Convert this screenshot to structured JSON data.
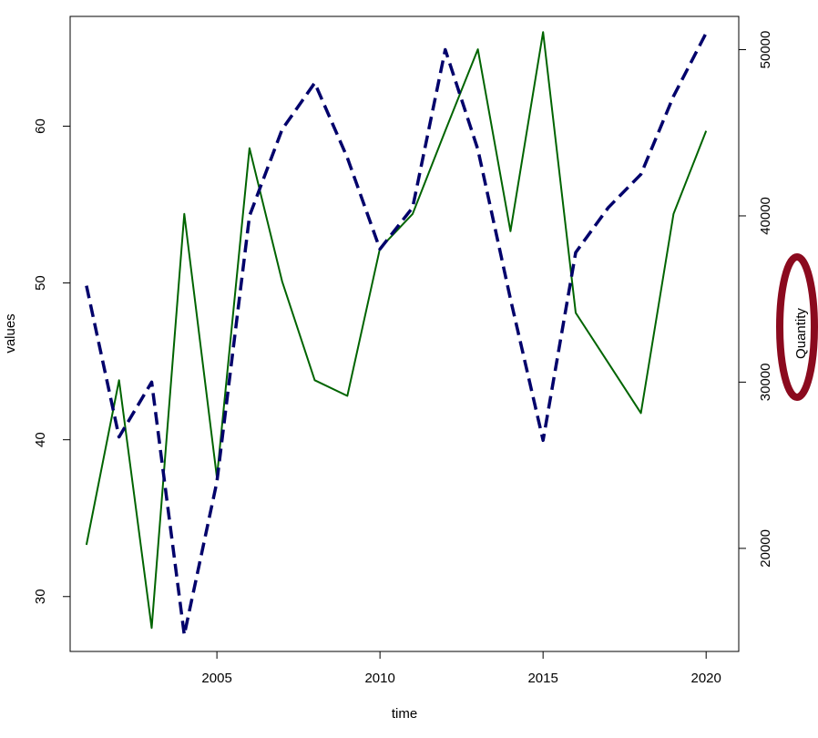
{
  "chart_data": {
    "type": "line",
    "x": [
      2001,
      2002,
      2003,
      2004,
      2005,
      2006,
      2007,
      2008,
      2009,
      2010,
      2011,
      2012,
      2013,
      2014,
      2015,
      2016,
      2017,
      2018,
      2019,
      2020
    ],
    "xlabel": "time",
    "ylabel": "values",
    "y2label": "Quantity",
    "xlim": [
      2000.5,
      2021
    ],
    "ylim": [
      26.5,
      67
    ],
    "y2lim": [
      13800,
      52000
    ],
    "xticks": [
      2005,
      2010,
      2015,
      2020
    ],
    "yticks": [
      30,
      40,
      50,
      60
    ],
    "y2ticks": [
      20000,
      30000,
      40000,
      50000
    ],
    "grid": false,
    "series": [
      {
        "axis": "left",
        "style": "solid",
        "color": "#006400",
        "values": [
          33.3,
          43.8,
          28.0,
          54.4,
          37.6,
          58.6,
          50.1,
          43.8,
          42.8,
          52.2,
          54.4,
          59.7,
          64.9,
          53.3,
          66.0,
          48.1,
          44.9,
          41.7,
          54.4,
          59.7
        ]
      },
      {
        "axis": "right",
        "style": "dashed",
        "color": "#00006B",
        "values": [
          35800,
          26700,
          30000,
          14800,
          24000,
          40000,
          45200,
          48000,
          43500,
          38000,
          40500,
          50000,
          44000,
          35000,
          26500,
          37800,
          40500,
          42500,
          47200,
          51000
        ]
      }
    ],
    "annotation": {
      "shape": "ellipse",
      "target": "Quantity",
      "color": "#8B0A1E"
    }
  }
}
